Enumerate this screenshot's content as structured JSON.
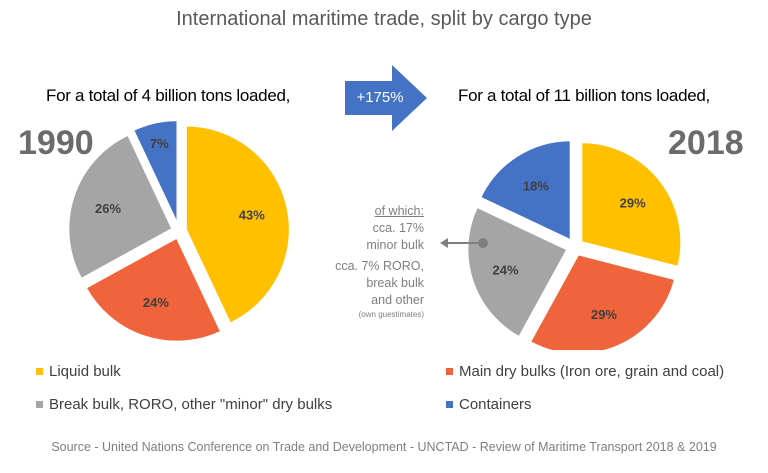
{
  "chart_data": [
    {
      "type": "pie",
      "title": "1990",
      "subtitle": "For a total of 4 billion tons loaded,",
      "categories": [
        "Liquid bulk",
        "Main dry bulks (Iron ore, grain and coal)",
        "Break bulk, RORO, other \"minor\" dry bulks",
        "Containers"
      ],
      "values": [
        43,
        24,
        26,
        7
      ],
      "labels": [
        "43%",
        "24%",
        "26%",
        "7%"
      ]
    },
    {
      "type": "pie",
      "title": "2018",
      "subtitle": "For a total of 11 billion tons loaded,",
      "categories": [
        "Liquid bulk",
        "Main dry bulks (Iron ore, grain and coal)",
        "Break bulk, RORO, other \"minor\" dry bulks",
        "Containers"
      ],
      "values": [
        29,
        29,
        24,
        18
      ],
      "labels": [
        "29%",
        "29%",
        "24%",
        "18%"
      ]
    }
  ],
  "title": "International maritime trade, split by cargo type",
  "growth": "+175%",
  "colors": [
    "#FFC000",
    "#F0643C",
    "#A5A5A5",
    "#4472C4"
  ],
  "arrow_color": "#4472C4",
  "note": {
    "heading": "of which:",
    "line1": "cca. 17%",
    "line2": "minor bulk",
    "line3": "cca. 7% RORO,",
    "line4": "break bulk",
    "line5": "and other",
    "line6": "(own guestimates)"
  },
  "legend": [
    "Liquid bulk",
    "Main dry bulks (Iron ore, grain and coal)",
    "Break bulk, RORO, other \"minor\" dry bulks",
    "Containers"
  ],
  "source": "Source - United Nations Conference on Trade and Development - UNCTAD - Review of Maritime Transport 2018 & 2019"
}
